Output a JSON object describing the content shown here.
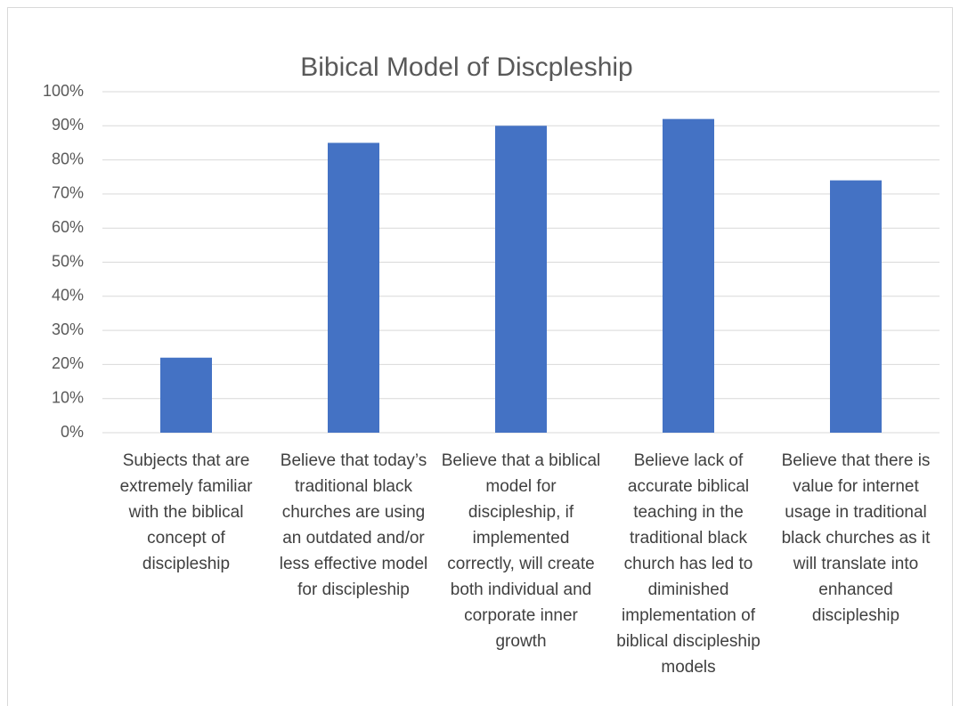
{
  "chart_data": {
    "type": "bar",
    "title": "Bibical Model of Discpleship",
    "categories": [
      "Subjects that are extremely familiar with the biblical concept of discipleship",
      "Believe that today’s traditional black churches are using an outdated and/or less effective model for discipleship",
      "Believe that a biblical model for discipleship, if implemented correctly, will create both individual and corporate inner growth",
      "Believe lack of accurate biblical teaching in the traditional black church has led to diminished implementation of biblical discipleship models",
      "Believe that there is value for internet usage in traditional black churches as it will translate into enhanced discipleship"
    ],
    "values": [
      22,
      85,
      90,
      92,
      74
    ],
    "color": "#4472c4",
    "ylim": [
      0,
      100
    ],
    "yticks": [
      {
        "value": 0,
        "label": "0%"
      },
      {
        "value": 10,
        "label": "10%"
      },
      {
        "value": 20,
        "label": "20%"
      },
      {
        "value": 30,
        "label": "30%"
      },
      {
        "value": 40,
        "label": "40%"
      },
      {
        "value": 50,
        "label": "50%"
      },
      {
        "value": 60,
        "label": "60%"
      },
      {
        "value": 70,
        "label": "70%"
      },
      {
        "value": 80,
        "label": "80%"
      },
      {
        "value": 90,
        "label": "90%"
      },
      {
        "value": 100,
        "label": "100%"
      }
    ],
    "grid": true
  }
}
